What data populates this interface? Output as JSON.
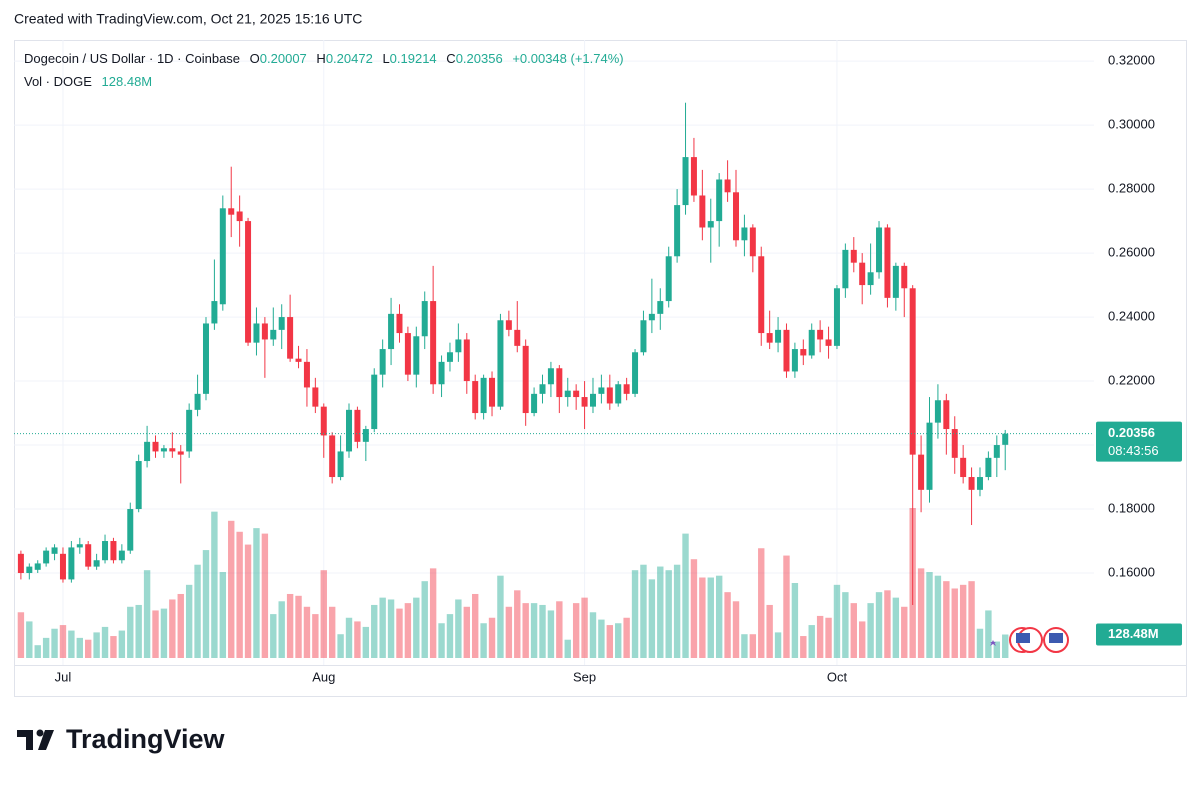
{
  "header": {
    "created": "Created with TradingView.com, Oct 21, 2025 15:16 UTC",
    "logo": "TradingView"
  },
  "chart_data": {
    "type": "candlestick",
    "title": "Dogecoin / US Dollar · 1D · Coinbase",
    "ohlc_legend": [
      {
        "label": "O",
        "value": 0.20007
      },
      {
        "label": "H",
        "value": 0.20472
      },
      {
        "label": "L",
        "value": 0.19214
      },
      {
        "label": "C",
        "value": 0.20356
      }
    ],
    "change": "+0.00348 (+1.74%)",
    "volume_title": "Vol · DOGE",
    "volume_label": "128.48M",
    "last_price": 0.20356,
    "countdown": "08:43:56",
    "categories": [
      null,
      null,
      null,
      null,
      null,
      "Jul",
      null,
      null,
      null,
      null,
      null,
      null,
      null,
      null,
      null,
      null,
      null,
      null,
      null,
      null,
      null,
      null,
      null,
      null,
      null,
      null,
      null,
      null,
      null,
      null,
      null,
      null,
      null,
      null,
      null,
      null,
      "Aug",
      null,
      null,
      null,
      null,
      null,
      null,
      null,
      null,
      null,
      null,
      null,
      null,
      null,
      null,
      null,
      null,
      null,
      null,
      null,
      null,
      null,
      null,
      null,
      null,
      null,
      null,
      null,
      null,
      null,
      null,
      "Sep",
      null,
      null,
      null,
      null,
      null,
      null,
      null,
      null,
      null,
      null,
      null,
      null,
      null,
      null,
      null,
      null,
      null,
      null,
      null,
      null,
      null,
      null,
      null,
      null,
      null,
      null,
      null,
      null,
      null,
      "Oct",
      null,
      null,
      null,
      null,
      null,
      null,
      null,
      null,
      null,
      null,
      null,
      null,
      null,
      null,
      null,
      null,
      null,
      null,
      null,
      null
    ],
    "open": [
      0.166,
      0.16,
      0.161,
      0.163,
      0.166,
      0.166,
      0.158,
      0.168,
      0.169,
      0.162,
      0.164,
      0.17,
      0.164,
      0.167,
      0.18,
      0.195,
      0.201,
      0.198,
      0.199,
      0.198,
      0.198,
      0.211,
      0.216,
      0.238,
      0.244,
      0.274,
      0.273,
      0.27,
      0.232,
      0.238,
      0.233,
      0.236,
      0.24,
      0.227,
      0.226,
      0.218,
      0.212,
      0.203,
      0.19,
      0.198,
      0.211,
      0.201,
      0.205,
      0.222,
      0.23,
      0.241,
      0.235,
      0.222,
      0.234,
      0.245,
      0.219,
      0.226,
      0.229,
      0.233,
      0.22,
      0.21,
      0.221,
      0.212,
      0.239,
      0.236,
      0.231,
      0.21,
      0.216,
      0.219,
      0.224,
      0.215,
      0.217,
      0.215,
      0.212,
      0.216,
      0.218,
      0.213,
      0.219,
      0.216,
      0.229,
      0.239,
      0.241,
      0.245,
      0.259,
      0.275,
      0.29,
      0.278,
      0.268,
      0.27,
      0.283,
      0.279,
      0.264,
      0.268,
      0.259,
      0.235,
      0.232,
      0.236,
      0.223,
      0.23,
      0.228,
      0.236,
      0.233,
      0.231,
      0.249,
      0.261,
      0.257,
      0.25,
      0.254,
      0.268,
      0.246,
      0.256,
      0.249,
      0.197,
      0.186,
      0.207,
      0.214,
      0.205,
      0.196,
      0.19,
      0.186,
      0.19,
      0.196,
      0.20007
    ],
    "high": [
      0.167,
      0.163,
      0.164,
      0.168,
      0.169,
      0.168,
      0.17,
      0.171,
      0.17,
      0.166,
      0.172,
      0.171,
      0.169,
      0.182,
      0.197,
      0.206,
      0.203,
      0.2,
      0.204,
      0.2,
      0.213,
      0.222,
      0.24,
      0.258,
      0.278,
      0.287,
      0.278,
      0.271,
      0.243,
      0.24,
      0.243,
      0.244,
      0.247,
      0.231,
      0.23,
      0.221,
      0.213,
      0.204,
      0.203,
      0.213,
      0.212,
      0.206,
      0.224,
      0.233,
      0.246,
      0.244,
      0.237,
      0.237,
      0.248,
      0.256,
      0.228,
      0.232,
      0.238,
      0.235,
      0.222,
      0.222,
      0.223,
      0.241,
      0.242,
      0.245,
      0.233,
      0.218,
      0.222,
      0.226,
      0.225,
      0.221,
      0.219,
      0.22,
      0.221,
      0.222,
      0.222,
      0.22,
      0.221,
      0.23,
      0.242,
      0.252,
      0.249,
      0.262,
      0.28,
      0.307,
      0.296,
      0.286,
      0.277,
      0.285,
      0.289,
      0.286,
      0.272,
      0.269,
      0.262,
      0.242,
      0.24,
      0.238,
      0.232,
      0.233,
      0.238,
      0.239,
      0.237,
      0.25,
      0.263,
      0.265,
      0.26,
      0.263,
      0.27,
      0.269,
      0.257,
      0.257,
      0.25,
      0.203,
      0.215,
      0.219,
      0.216,
      0.209,
      0.2,
      0.193,
      0.193,
      0.198,
      0.203,
      0.20472
    ],
    "low": [
      0.158,
      0.158,
      0.16,
      0.162,
      0.164,
      0.157,
      0.157,
      0.166,
      0.161,
      0.161,
      0.163,
      0.163,
      0.163,
      0.166,
      0.179,
      0.193,
      0.196,
      0.196,
      0.196,
      0.188,
      0.196,
      0.209,
      0.214,
      0.236,
      0.242,
      0.265,
      0.262,
      0.231,
      0.228,
      0.221,
      0.231,
      0.23,
      0.226,
      0.224,
      0.212,
      0.21,
      0.196,
      0.188,
      0.189,
      0.196,
      0.199,
      0.195,
      0.204,
      0.218,
      0.225,
      0.232,
      0.22,
      0.218,
      0.23,
      0.216,
      0.215,
      0.223,
      0.226,
      0.216,
      0.208,
      0.208,
      0.209,
      0.211,
      0.234,
      0.229,
      0.206,
      0.209,
      0.213,
      0.215,
      0.21,
      0.212,
      0.211,
      0.205,
      0.21,
      0.213,
      0.211,
      0.212,
      0.214,
      0.215,
      0.228,
      0.235,
      0.236,
      0.243,
      0.257,
      0.272,
      0.276,
      0.264,
      0.257,
      0.262,
      0.276,
      0.262,
      0.259,
      0.254,
      0.231,
      0.23,
      0.229,
      0.221,
      0.221,
      0.225,
      0.227,
      0.229,
      0.227,
      0.23,
      0.246,
      0.254,
      0.244,
      0.247,
      0.252,
      0.243,
      0.242,
      0.24,
      0.15,
      0.179,
      0.182,
      0.202,
      0.197,
      0.191,
      0.188,
      0.175,
      0.184,
      0.189,
      0.19,
      0.19214
    ],
    "close": [
      0.16,
      0.162,
      0.163,
      0.167,
      0.168,
      0.158,
      0.168,
      0.169,
      0.162,
      0.164,
      0.17,
      0.164,
      0.167,
      0.18,
      0.195,
      0.201,
      0.198,
      0.199,
      0.198,
      0.197,
      0.211,
      0.216,
      0.238,
      0.245,
      0.274,
      0.272,
      0.27,
      0.232,
      0.238,
      0.233,
      0.236,
      0.24,
      0.227,
      0.226,
      0.218,
      0.212,
      0.203,
      0.19,
      0.198,
      0.211,
      0.201,
      0.205,
      0.222,
      0.23,
      0.241,
      0.235,
      0.222,
      0.234,
      0.245,
      0.219,
      0.226,
      0.229,
      0.233,
      0.22,
      0.21,
      0.221,
      0.212,
      0.239,
      0.236,
      0.231,
      0.21,
      0.216,
      0.219,
      0.224,
      0.215,
      0.217,
      0.215,
      0.212,
      0.216,
      0.218,
      0.213,
      0.219,
      0.216,
      0.229,
      0.239,
      0.241,
      0.245,
      0.259,
      0.275,
      0.29,
      0.278,
      0.268,
      0.27,
      0.283,
      0.279,
      0.264,
      0.268,
      0.259,
      0.235,
      0.232,
      0.236,
      0.223,
      0.23,
      0.228,
      0.236,
      0.233,
      0.231,
      0.249,
      0.261,
      0.257,
      0.25,
      0.254,
      0.268,
      0.246,
      0.256,
      0.249,
      0.197,
      0.186,
      0.207,
      0.214,
      0.205,
      0.196,
      0.19,
      0.186,
      0.19,
      0.196,
      0.2,
      0.20356
    ],
    "volume": [
      250,
      200,
      70,
      110,
      160,
      180,
      150,
      110,
      100,
      140,
      170,
      120,
      150,
      280,
      290,
      480,
      260,
      270,
      320,
      350,
      400,
      510,
      590,
      800,
      470,
      750,
      690,
      620,
      710,
      680,
      240,
      310,
      350,
      340,
      280,
      240,
      480,
      280,
      130,
      220,
      200,
      170,
      290,
      330,
      320,
      270,
      300,
      330,
      420,
      490,
      190,
      240,
      320,
      280,
      350,
      190,
      220,
      450,
      280,
      370,
      300,
      300,
      290,
      260,
      310,
      100,
      300,
      330,
      250,
      210,
      180,
      190,
      220,
      480,
      510,
      430,
      500,
      480,
      510,
      680,
      540,
      440,
      440,
      450,
      360,
      310,
      130,
      130,
      600,
      290,
      140,
      560,
      410,
      120,
      180,
      230,
      220,
      400,
      360,
      300,
      200,
      300,
      360,
      370,
      330,
      280,
      820,
      490,
      470,
      450,
      420,
      380,
      400,
      420,
      160,
      260,
      90,
      128.48
    ],
    "ylim": [
      0.13125,
      0.3266
    ],
    "yticks": [
      {
        "value": 0.16,
        "label": "0.16000"
      },
      {
        "value": 0.18,
        "label": "0.18000"
      },
      {
        "value": 0.2,
        "label": "0.20000"
      },
      {
        "value": 0.22,
        "label": "0.22000"
      },
      {
        "value": 0.24,
        "label": "0.24000"
      },
      {
        "value": 0.26,
        "label": "0.26000"
      },
      {
        "value": 0.28,
        "label": "0.28000"
      },
      {
        "value": 0.3,
        "label": "0.30000"
      },
      {
        "value": 0.32,
        "label": "0.32000"
      }
    ],
    "up_color": "#22ab94",
    "down_color": "#f23645",
    "grid": true
  }
}
